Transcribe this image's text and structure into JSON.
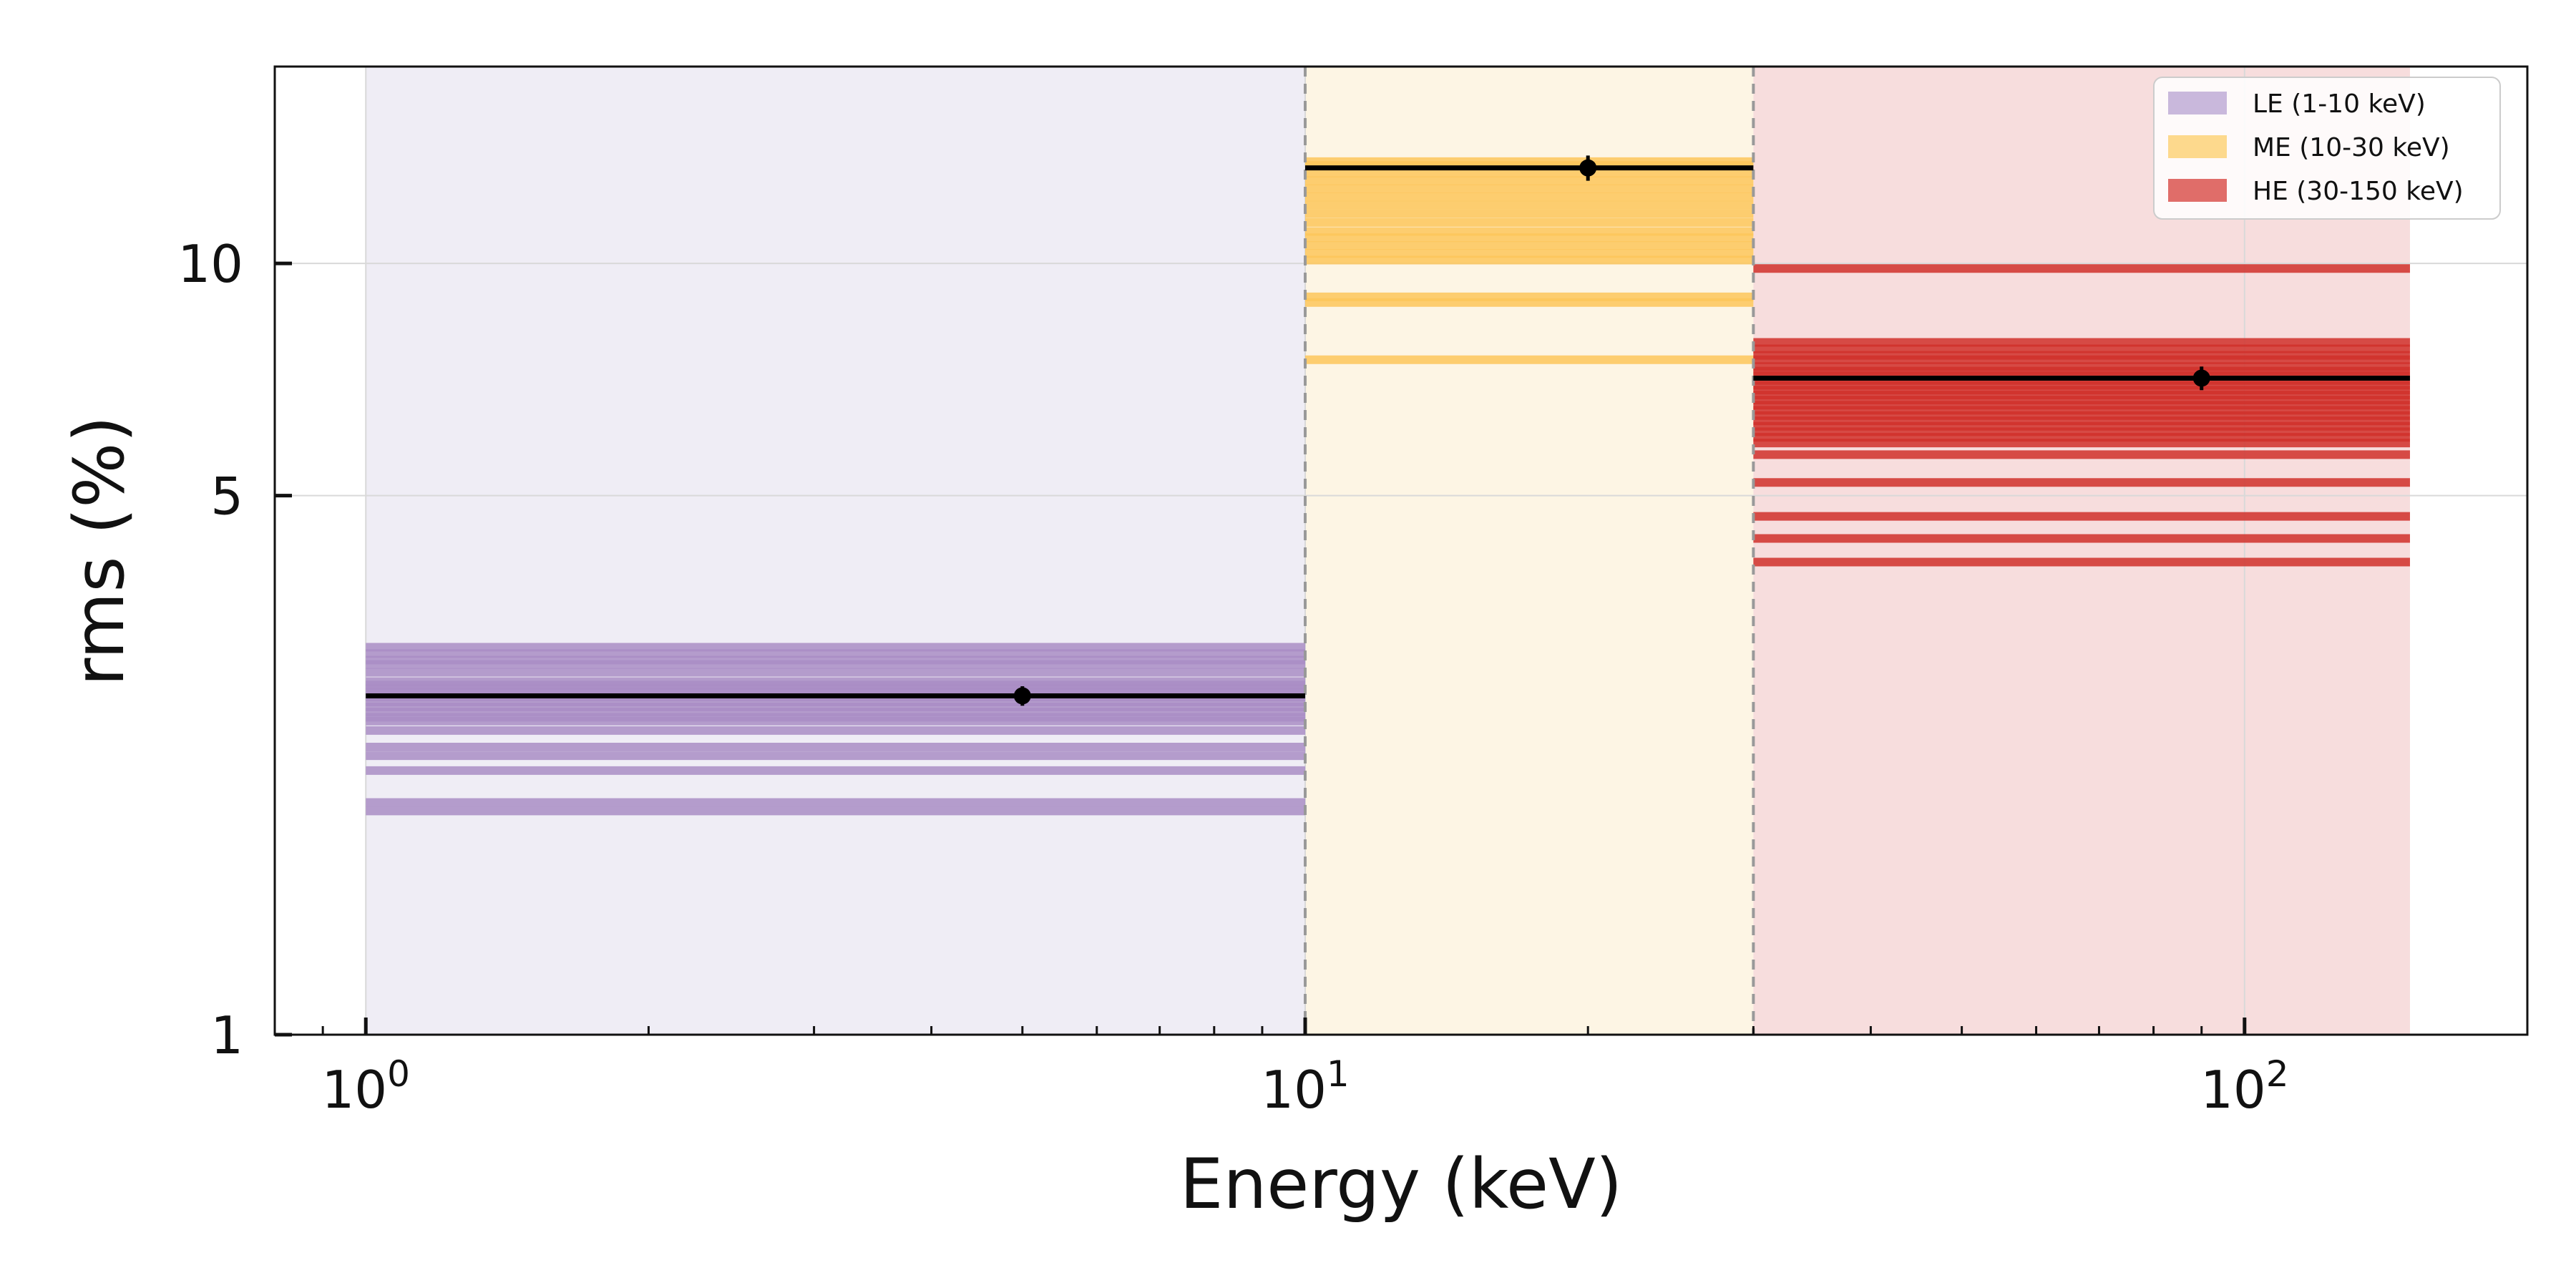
{
  "chart_data": {
    "type": "bar",
    "xlabel": "Energy (keV)",
    "ylabel": "rms (%)",
    "x_scale": "log",
    "y_scale": "log",
    "xlim": [
      0.8,
      200
    ],
    "ylim": [
      1,
      18
    ],
    "grid": true,
    "legend_position": "top-right",
    "x_ticks": [
      {
        "value": 1,
        "base": "10",
        "exp": "0"
      },
      {
        "value": 10,
        "base": "10",
        "exp": "1"
      },
      {
        "value": 100,
        "base": "10",
        "exp": "2"
      }
    ],
    "y_ticks": [
      {
        "value": 1,
        "label": "1"
      },
      {
        "value": 5,
        "label": "5"
      },
      {
        "value": 10,
        "label": "10"
      }
    ],
    "bands": [
      {
        "name": "LE (1-10 keV)",
        "x_range": [
          1,
          10
        ],
        "region_color": "#efedf5",
        "legend_color": "#c9b8dc",
        "line_color": "#a98dc4",
        "mean": {
          "x": 5,
          "y": 2.75,
          "err": 0.08
        },
        "samples": [
          1.95,
          2.0,
          2.2,
          2.3,
          2.36,
          2.48,
          2.55,
          2.58,
          2.62,
          2.66,
          2.7,
          2.74,
          2.78,
          2.81,
          2.84,
          2.87,
          2.95,
          3.02,
          3.06,
          3.12,
          3.18
        ]
      },
      {
        "name": "ME (10-30 keV)",
        "x_range": [
          10,
          30
        ],
        "region_color": "#fdf5e4",
        "legend_color": "#fdd98d",
        "line_color": "#fdc65a",
        "mean": {
          "x": 20,
          "y": 13.3,
          "err": 0.5
        },
        "samples": [
          7.5,
          8.9,
          9.05,
          10.1,
          10.3,
          10.55,
          10.8,
          11.0,
          11.3,
          11.6,
          11.9,
          12.2,
          12.5,
          12.8,
          13.1,
          13.4,
          13.55
        ]
      },
      {
        "name": "HE (30-150 keV)",
        "x_range": [
          30,
          150
        ],
        "region_color": "#f7dddd",
        "legend_color": "#e06d69",
        "line_color": "#d0302a",
        "mean": {
          "x": 90,
          "y": 7.1,
          "err": 0.25
        },
        "samples": [
          4.1,
          4.4,
          4.7,
          5.2,
          5.65,
          5.85,
          5.95,
          6.05,
          6.15,
          6.25,
          6.35,
          6.45,
          6.55,
          6.65,
          6.75,
          6.85,
          6.95,
          7.05,
          7.15,
          7.25,
          7.35,
          7.5,
          7.6,
          7.75,
          7.9,
          9.85
        ]
      }
    ]
  }
}
